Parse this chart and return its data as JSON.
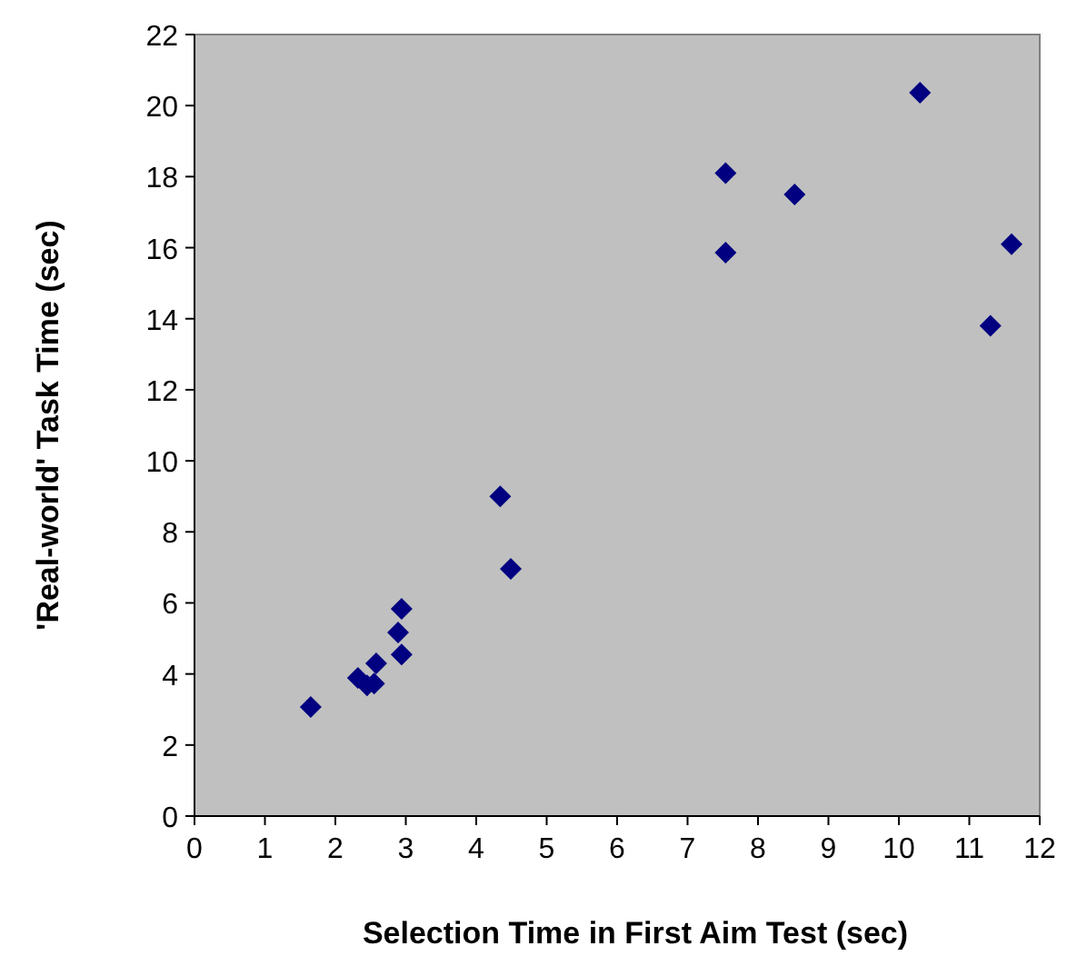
{
  "chart_data": {
    "type": "scatter",
    "xlabel": "Selection Time in First Aim Test (sec)",
    "ylabel": "'Real-world' Task Time (sec)",
    "x": [
      1.65,
      2.32,
      2.45,
      2.55,
      2.58,
      2.94,
      2.89,
      2.94,
      4.34,
      4.49,
      7.54,
      7.54,
      8.52,
      10.3,
      11.3,
      11.6
    ],
    "series": [
      {
        "color": "#000080",
        "values": [
          3.07,
          3.89,
          3.68,
          3.73,
          4.3,
          4.55,
          5.17,
          5.83,
          9.0,
          6.96,
          15.86,
          18.1,
          17.5,
          20.36,
          13.8,
          16.1
        ]
      }
    ],
    "xlim": [
      0,
      12
    ],
    "xticks": [
      0,
      1,
      2,
      3,
      4,
      5,
      6,
      7,
      8,
      9,
      10,
      11,
      12
    ],
    "ylim": [
      0,
      22
    ],
    "yticks": [
      0,
      2,
      4,
      6,
      8,
      10,
      12,
      14,
      16,
      18,
      20,
      22
    ],
    "marker": "diamond"
  }
}
